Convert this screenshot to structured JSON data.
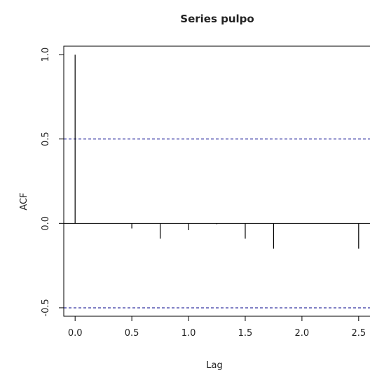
{
  "chart_data": {
    "type": "bar",
    "title": "Series  pulpo",
    "xlabel": "Lag",
    "ylabel": "ACF",
    "x": [
      0.0,
      0.25,
      0.5,
      0.75,
      1.0,
      1.25,
      1.5,
      1.75,
      2.0,
      2.25,
      2.5
    ],
    "values": [
      1.0,
      0.0,
      -0.03,
      -0.09,
      -0.04,
      -0.005,
      -0.09,
      -0.15,
      0.0,
      0.0,
      -0.15
    ],
    "x_ticks": [
      0.0,
      0.5,
      1.0,
      1.5,
      2.0,
      2.5
    ],
    "x_tick_labels": [
      "0.0",
      "0.5",
      "1.0",
      "1.5",
      "2.0",
      "2.5"
    ],
    "y_ticks": [
      -0.5,
      0.0,
      0.5,
      1.0
    ],
    "y_tick_labels": [
      "-0.5",
      "0.0",
      "0.5",
      "1.0"
    ],
    "xlim": [
      -0.1,
      2.6
    ],
    "ylim": [
      -0.55,
      1.05
    ],
    "confidence_bands": [
      0.5,
      -0.5
    ],
    "zero_line": 0.0,
    "colors": {
      "bars": "#000000",
      "bands": "#00008b",
      "axis": "#000000"
    },
    "grid": false,
    "legend": "none"
  }
}
